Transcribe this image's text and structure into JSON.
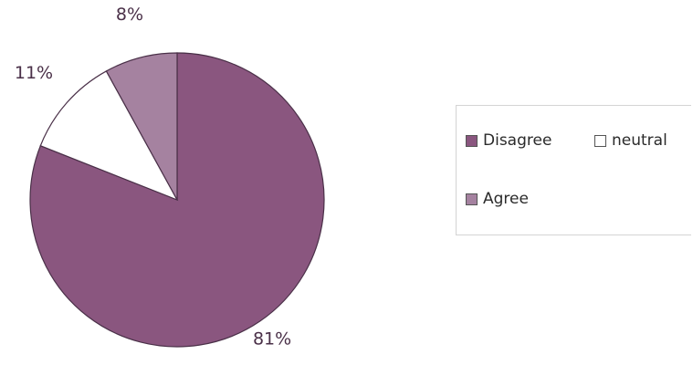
{
  "chart_data": {
    "type": "pie",
    "slices": [
      {
        "label": "Disagree",
        "value": 81,
        "value_label": "81%",
        "color": "#8a567f"
      },
      {
        "label": "neutral",
        "value": 11,
        "value_label": "11%",
        "color": "#ffffff"
      },
      {
        "label": "Agree",
        "value": 8,
        "value_label": "8%",
        "color": "#a582a0"
      }
    ],
    "start": "12 o'clock",
    "direction": "clockwise",
    "stroke_color": "#4a3048",
    "legend": {
      "position": "right",
      "entries": [
        "Disagree",
        "neutral",
        "Agree"
      ]
    }
  }
}
